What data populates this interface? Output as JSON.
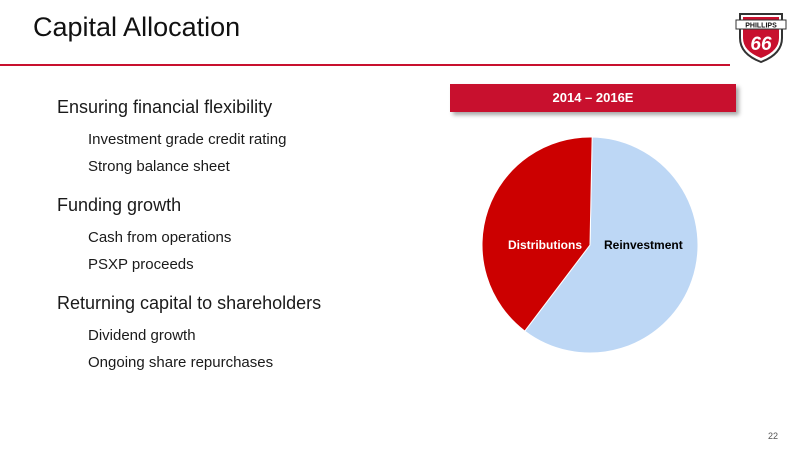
{
  "slide": {
    "title": "Capital Allocation",
    "page_number": "22"
  },
  "logo": {
    "text_top": "PHILLIPS",
    "text_number": "66"
  },
  "sections": [
    {
      "heading": "Ensuring financial flexibility",
      "bullets": [
        "Investment grade credit rating",
        "Strong balance sheet"
      ]
    },
    {
      "heading": "Funding growth",
      "bullets": [
        "Cash from operations",
        "PSXP proceeds"
      ]
    },
    {
      "heading": "Returning capital to shareholders",
      "bullets": [
        "Dividend growth",
        "Ongoing share repurchases"
      ]
    }
  ],
  "chart_data": {
    "type": "pie",
    "title": "2014 – 2016E",
    "slices": [
      {
        "label": "Reinvestment",
        "value": 60,
        "color": "#bdd7f5",
        "label_color": "#000000"
      },
      {
        "label": "Distributions",
        "value": 40,
        "color": "#cc0000",
        "label_color": "#ffffff"
      }
    ],
    "accent_color": "#c8102e"
  }
}
